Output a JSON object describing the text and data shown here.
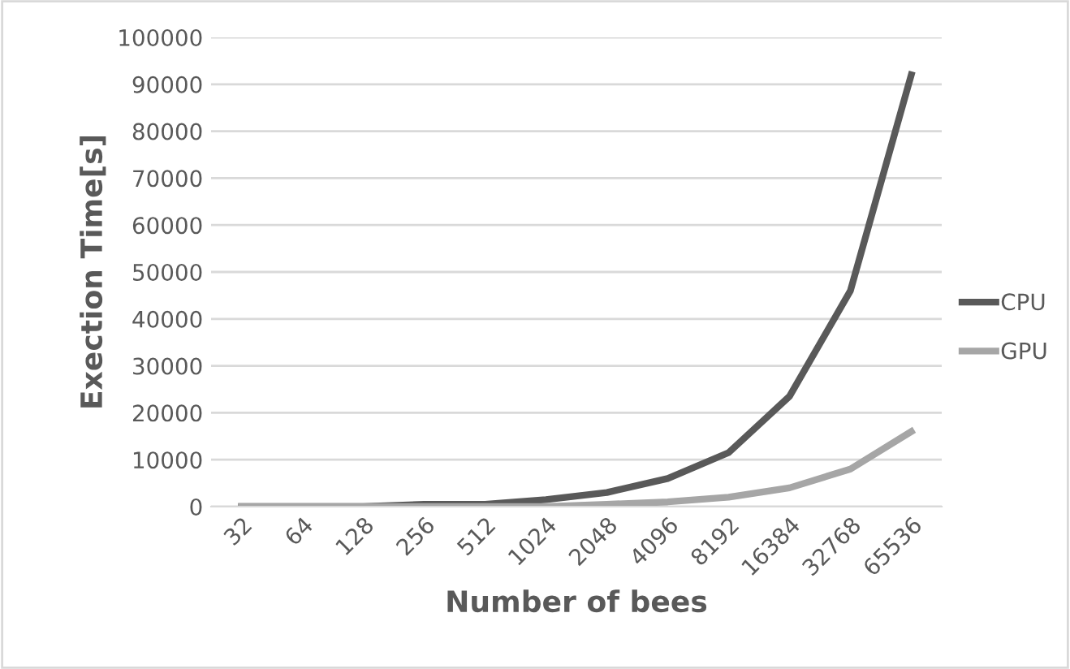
{
  "chart_data": {
    "type": "line",
    "xlabel": "Number of bees",
    "ylabel": "Exection Time[s]",
    "categories": [
      "32",
      "64",
      "128",
      "256",
      "512",
      "1024",
      "2048",
      "4096",
      "8192",
      "16384",
      "32768",
      "65536"
    ],
    "series": [
      {
        "name": "CPU",
        "color": "#595959",
        "values": [
          0,
          0,
          0,
          500,
          500,
          1500,
          3000,
          6000,
          11500,
          23500,
          46000,
          92000
        ]
      },
      {
        "name": "GPU",
        "color": "#a6a6a6",
        "values": [
          0,
          0,
          0,
          0,
          0,
          0,
          500,
          1000,
          2000,
          4000,
          8000,
          16000
        ]
      }
    ],
    "ylim": [
      0,
      100000
    ],
    "yticks": [
      0,
      10000,
      20000,
      30000,
      40000,
      50000,
      60000,
      70000,
      80000,
      90000,
      100000
    ],
    "grid": "y",
    "legend": "right",
    "marker": "none",
    "line_style": "solid"
  }
}
